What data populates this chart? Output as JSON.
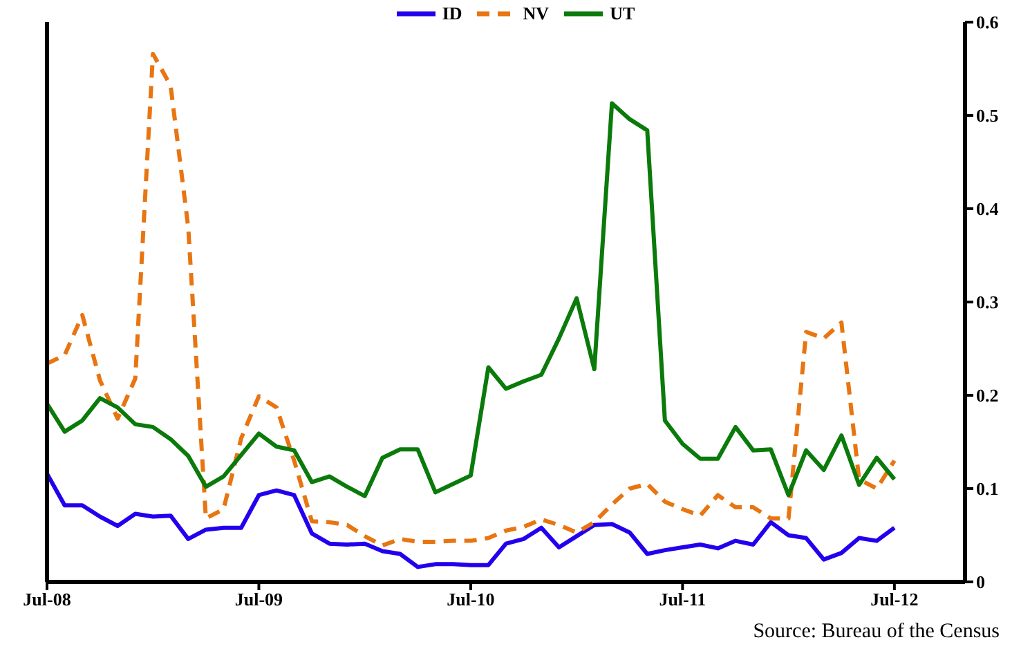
{
  "chart_data": {
    "type": "line",
    "x": [
      "2008-07",
      "2008-08",
      "2008-09",
      "2008-10",
      "2008-11",
      "2008-12",
      "2009-01",
      "2009-02",
      "2009-03",
      "2009-04",
      "2009-05",
      "2009-06",
      "2009-07",
      "2009-08",
      "2009-09",
      "2009-10",
      "2009-11",
      "2009-12",
      "2010-01",
      "2010-02",
      "2010-03",
      "2010-04",
      "2010-05",
      "2010-06",
      "2010-07",
      "2010-08",
      "2010-09",
      "2010-10",
      "2010-11",
      "2010-12",
      "2011-01",
      "2011-02",
      "2011-03",
      "2011-04",
      "2011-05",
      "2011-06",
      "2011-07",
      "2011-08",
      "2011-09",
      "2011-10",
      "2011-11",
      "2011-12",
      "2012-01",
      "2012-02",
      "2012-03",
      "2012-04",
      "2012-05",
      "2012-06",
      "2012-07"
    ],
    "series": [
      {
        "name": "ID",
        "color": "#2200ee",
        "line_style": "solid",
        "values": [
          0.116,
          0.082,
          0.082,
          0.07,
          0.06,
          0.073,
          0.07,
          0.071,
          0.046,
          0.056,
          0.058,
          0.058,
          0.093,
          0.098,
          0.093,
          0.052,
          0.041,
          0.04,
          0.041,
          0.033,
          0.03,
          0.016,
          0.019,
          0.019,
          0.018,
          0.018,
          0.041,
          0.046,
          0.058,
          0.037,
          0.049,
          0.061,
          0.062,
          0.053,
          0.03,
          0.034,
          0.037,
          0.04,
          0.036,
          0.044,
          0.04,
          0.064,
          0.05,
          0.047,
          0.024,
          0.031,
          0.047,
          0.044,
          0.058
        ]
      },
      {
        "name": "NV",
        "color": "#e87511",
        "line_style": "dashed",
        "values": [
          0.234,
          0.243,
          0.286,
          0.216,
          0.175,
          0.218,
          0.566,
          0.532,
          0.38,
          0.068,
          0.078,
          0.154,
          0.199,
          0.187,
          0.13,
          0.065,
          0.064,
          0.061,
          0.049,
          0.039,
          0.046,
          0.043,
          0.043,
          0.044,
          0.044,
          0.047,
          0.055,
          0.059,
          0.067,
          0.061,
          0.053,
          0.064,
          0.083,
          0.1,
          0.105,
          0.086,
          0.078,
          0.071,
          0.093,
          0.08,
          0.08,
          0.068,
          0.068,
          0.268,
          0.261,
          0.278,
          0.11,
          0.1,
          0.13
        ]
      },
      {
        "name": "UT",
        "color": "#0a7a0a",
        "line_style": "solid",
        "values": [
          0.191,
          0.161,
          0.173,
          0.197,
          0.187,
          0.169,
          0.166,
          0.153,
          0.135,
          0.102,
          0.113,
          0.136,
          0.159,
          0.145,
          0.141,
          0.107,
          0.113,
          0.102,
          0.092,
          0.133,
          0.142,
          0.142,
          0.096,
          0.105,
          0.114,
          0.23,
          0.207,
          0.215,
          0.222,
          0.261,
          0.304,
          0.228,
          0.513,
          0.496,
          0.484,
          0.173,
          0.148,
          0.132,
          0.132,
          0.166,
          0.141,
          0.142,
          0.093,
          0.141,
          0.12,
          0.157,
          0.104,
          0.133,
          0.11
        ]
      }
    ],
    "xlim": [
      "2008-07",
      "2012-11"
    ],
    "xticks": [
      {
        "value": "2008-07",
        "label": "Jul-08"
      },
      {
        "value": "2009-07",
        "label": "Jul-09"
      },
      {
        "value": "2010-07",
        "label": "Jul-10"
      },
      {
        "value": "2011-07",
        "label": "Jul-11"
      },
      {
        "value": "2012-07",
        "label": "Jul-12"
      }
    ],
    "ylim": [
      0,
      0.6
    ],
    "yticks": [
      0,
      0.1,
      0.2,
      0.3,
      0.4,
      0.5,
      0.6
    ],
    "grid": false,
    "legend": "top",
    "marker": "none",
    "annotations": [
      "Source: Bureau of the Census"
    ]
  }
}
